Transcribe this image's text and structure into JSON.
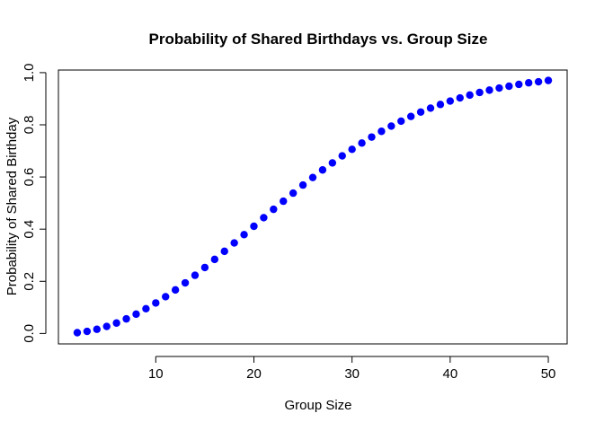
{
  "chart_data": {
    "type": "scatter",
    "title": "Probability of Shared Birthdays vs. Group Size",
    "xlabel": "Group Size",
    "ylabel": "Probability of Shared Birthday",
    "xlim": [
      0.08,
      51.92
    ],
    "ylim": [
      -0.04,
      1.01
    ],
    "x_ticks": [
      10,
      20,
      30,
      40,
      50
    ],
    "y_ticks": [
      0.0,
      0.2,
      0.4,
      0.6,
      0.8,
      1.0
    ],
    "x_tick_labels": [
      "10",
      "20",
      "30",
      "40",
      "50"
    ],
    "y_tick_labels": [
      "0.0",
      "0.2",
      "0.4",
      "0.6",
      "0.8",
      "1.0"
    ],
    "grid": false,
    "point_color": "#0000FF",
    "series": [
      {
        "x": [
          2,
          3,
          4,
          5,
          6,
          7,
          8,
          9,
          10,
          11,
          12,
          13,
          14,
          15,
          16,
          17,
          18,
          19,
          20,
          21,
          22,
          23,
          24,
          25,
          26,
          27,
          28,
          29,
          30,
          31,
          32,
          33,
          34,
          35,
          36,
          37,
          38,
          39,
          40,
          41,
          42,
          43,
          44,
          45,
          46,
          47,
          48,
          49,
          50
        ],
        "values": [
          0.003,
          0.008,
          0.016,
          0.027,
          0.04,
          0.056,
          0.074,
          0.095,
          0.117,
          0.141,
          0.167,
          0.194,
          0.223,
          0.253,
          0.284,
          0.315,
          0.347,
          0.379,
          0.411,
          0.444,
          0.476,
          0.507,
          0.538,
          0.569,
          0.598,
          0.627,
          0.654,
          0.681,
          0.706,
          0.73,
          0.753,
          0.775,
          0.795,
          0.814,
          0.832,
          0.849,
          0.864,
          0.878,
          0.891,
          0.903,
          0.914,
          0.924,
          0.933,
          0.941,
          0.948,
          0.955,
          0.961,
          0.965,
          0.97
        ]
      }
    ]
  }
}
